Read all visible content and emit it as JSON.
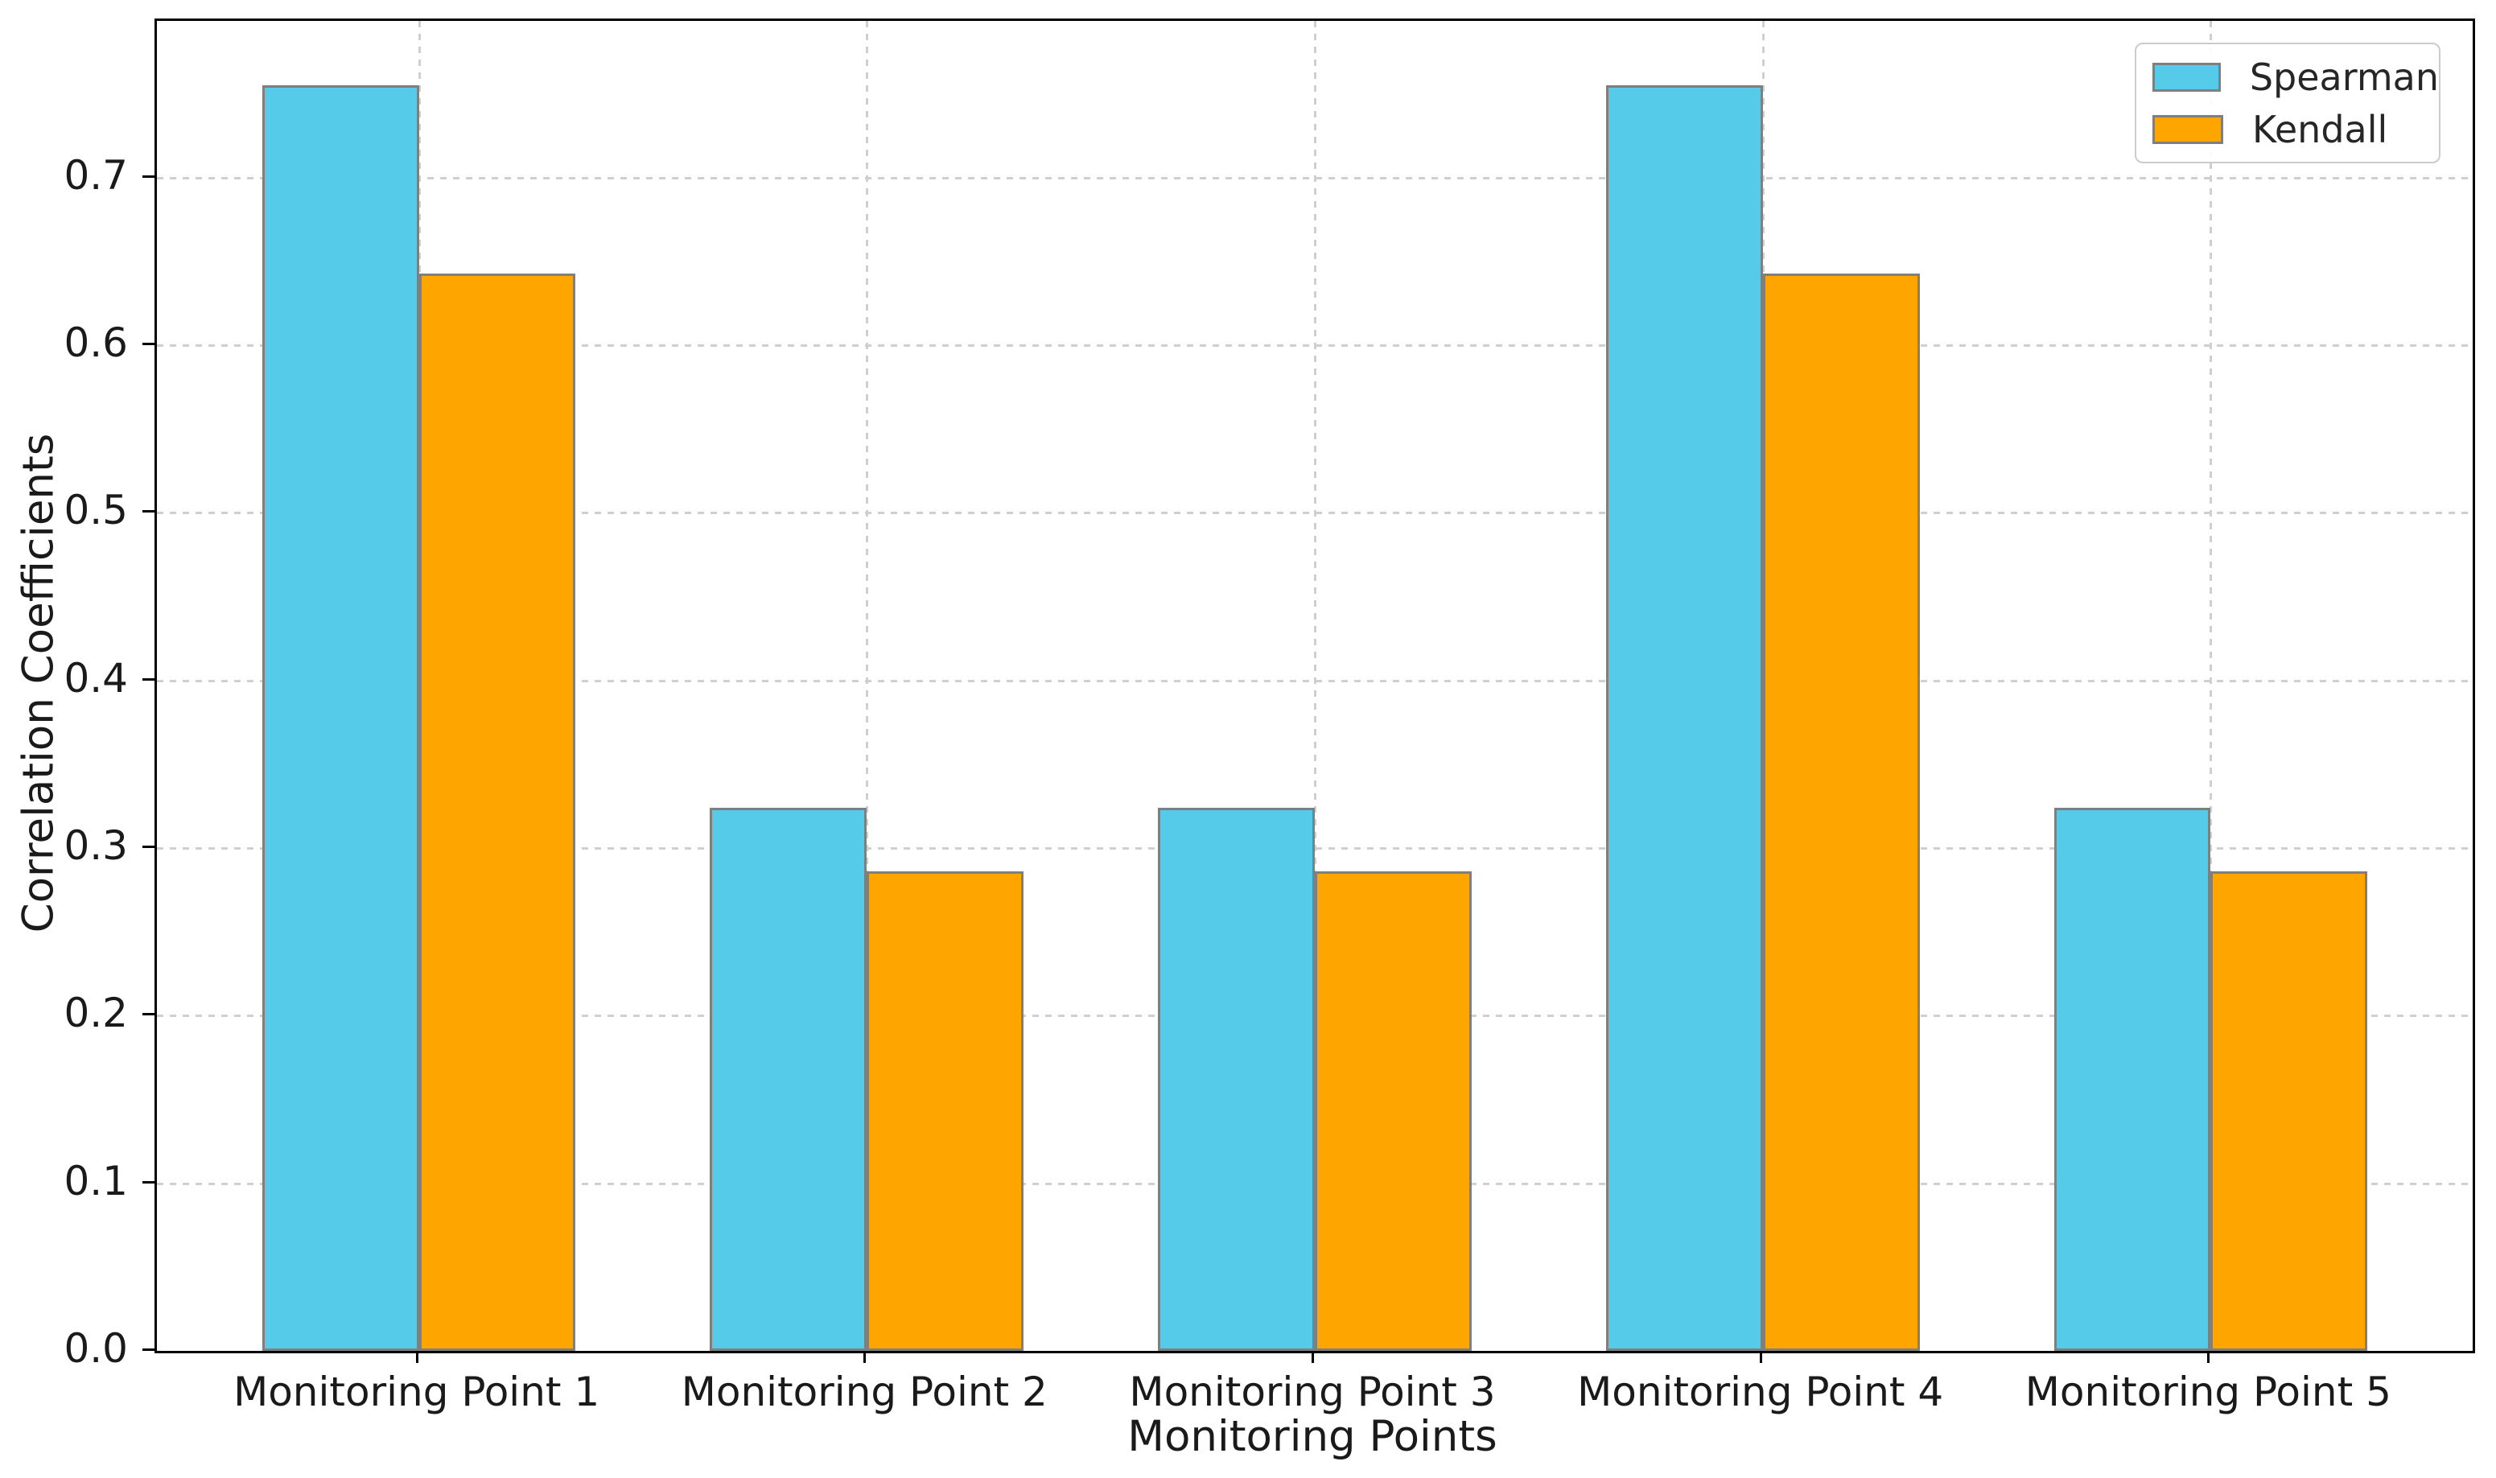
{
  "chart_data": {
    "type": "bar",
    "categories": [
      "Monitoring Point 1",
      "Monitoring Point 2",
      "Monitoring Point 3",
      "Monitoring Point 4",
      "Monitoring Point 5"
    ],
    "series": [
      {
        "name": "Spearman",
        "color": "#56CBE9",
        "values": [
          0.755,
          0.324,
          0.324,
          0.755,
          0.324
        ]
      },
      {
        "name": "Kendall",
        "color": "#FFA500",
        "values": [
          0.643,
          0.286,
          0.286,
          0.643,
          0.286
        ]
      }
    ],
    "title": "",
    "xlabel": "Monitoring Points",
    "ylabel": "Correlation Coefficients",
    "ylim": [
      0,
      0.7935
    ],
    "yticks": [
      0.0,
      0.1,
      0.2,
      0.3,
      0.4,
      0.5,
      0.6,
      0.7
    ],
    "ytick_labels": [
      "0.0",
      "0.1",
      "0.2",
      "0.3",
      "0.4",
      "0.5",
      "0.6",
      "0.7"
    ],
    "bar_width_units": 0.35,
    "bar_edge_color": "#7f7f7f",
    "grid": {
      "enabled": true,
      "style": "dashed",
      "color": "#cfcfcf"
    },
    "legend": {
      "position": "upper right",
      "entries": [
        "Spearman",
        "Kendall"
      ]
    }
  }
}
